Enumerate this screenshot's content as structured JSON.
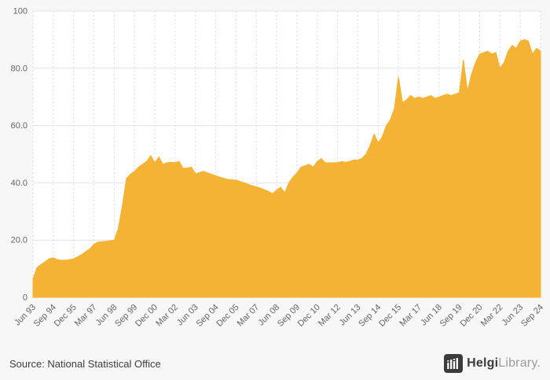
{
  "chart_data": {
    "type": "area",
    "title": "",
    "xlabel": "",
    "ylabel": "",
    "ylim": [
      0,
      100
    ],
    "y_ticks": [
      0,
      20,
      40,
      60,
      80,
      100
    ],
    "y_tick_labels": [
      "0",
      "20.0",
      "40.0",
      "60.0",
      "80.0",
      "100"
    ],
    "grid": true,
    "area_color": "#F5B335",
    "tick_every": 5,
    "x_tick_labels": [
      "Jun 93",
      "Sep 94",
      "Dec 95",
      "Mar 97",
      "Jun 98",
      "Sep 99",
      "Dec 00",
      "Mar 02",
      "Jun 03",
      "Sep 04",
      "Dec 05",
      "Mar 07",
      "Jun 08",
      "Sep 09",
      "Dec 10",
      "Mar 12",
      "Jun 13",
      "Sep 14",
      "Dec 15",
      "Mar 17",
      "Jun 18",
      "Sep 19",
      "Dec 20",
      "Mar 22",
      "Jun 23",
      "Sep 24"
    ],
    "values": [
      6.5,
      10.5,
      11.5,
      12.5,
      13.5,
      13.8,
      13.2,
      13.0,
      13.0,
      13.2,
      13.5,
      14.2,
      15.0,
      16.0,
      17.0,
      18.5,
      19.3,
      19.5,
      19.6,
      19.8,
      20.0,
      24.0,
      32.0,
      41.5,
      43.0,
      44.0,
      45.5,
      46.5,
      47.5,
      49.5,
      47.0,
      49.0,
      46.5,
      47.0,
      47.2,
      47.0,
      47.5,
      45.0,
      45.2,
      45.5,
      43.2,
      43.6,
      44.0,
      43.5,
      43.0,
      42.5,
      42.0,
      41.6,
      41.2,
      41.0,
      41.0,
      40.5,
      40.0,
      39.5,
      39.0,
      38.6,
      38.2,
      37.6,
      37.0,
      36.2,
      37.5,
      38.5,
      36.5,
      40.0,
      42.0,
      43.5,
      45.5,
      46.0,
      46.5,
      45.5,
      47.5,
      48.5,
      47.0,
      47.0,
      47.0,
      47.0,
      47.5,
      47.2,
      47.5,
      48.0,
      48.0,
      48.5,
      50.0,
      53.0,
      57.0,
      54.0,
      56.0,
      60.0,
      62.0,
      66.0,
      77.0,
      68.0,
      69.0,
      70.5,
      69.5,
      70.0,
      69.5,
      70.0,
      70.5,
      69.5,
      70.0,
      70.5,
      71.0,
      70.5,
      71.0,
      71.5,
      83.0,
      72.0,
      78.0,
      82.0,
      85.0,
      85.5,
      86.0,
      85.0,
      85.5,
      80.0,
      82.0,
      86.0,
      88.0,
      87.0,
      89.5,
      90.0,
      89.5,
      85.0,
      87.0,
      86.0
    ]
  },
  "footer": {
    "source": "Source: National Statistical Office",
    "logo_helgi": "Helgi",
    "logo_library": "Library."
  }
}
